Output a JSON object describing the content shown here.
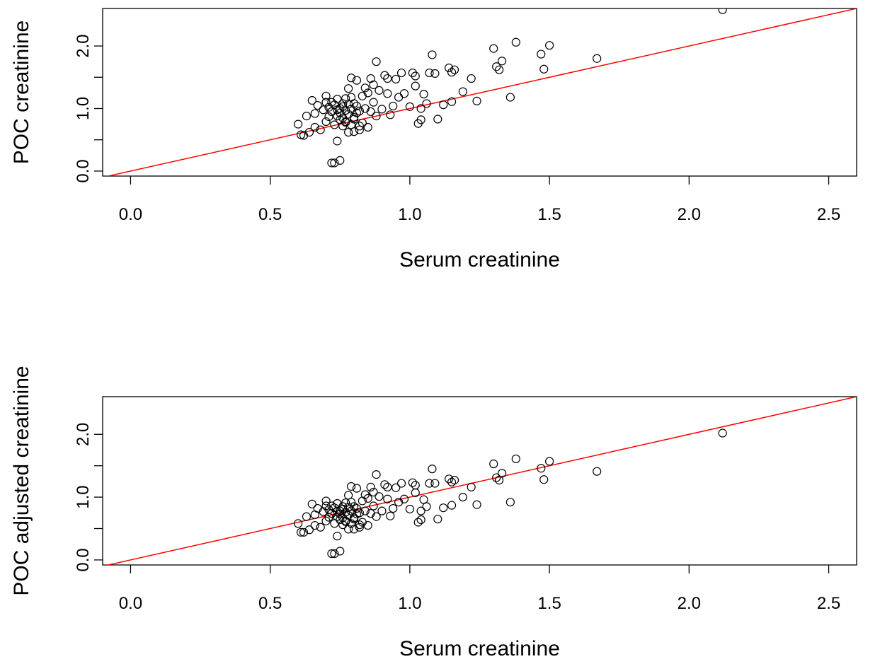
{
  "colors": {
    "points": "#000000",
    "identity_line": "#ff0000",
    "frame": "#000000",
    "background": "#ffffff"
  },
  "chart_data": [
    {
      "type": "scatter",
      "title": "",
      "xlabel": "Serum creatinine",
      "ylabel": "POC creatinine",
      "xlim": [
        -0.1,
        2.6
      ],
      "ylim": [
        -0.08,
        2.6
      ],
      "xticks": [
        "0.0",
        "0.5",
        "1.0",
        "1.5",
        "2.0",
        "2.5"
      ],
      "yticks": [
        "0.0",
        "1.0",
        "2.0"
      ],
      "yticks_minor": [
        0.5,
        1.5
      ],
      "grid": false,
      "reference_line": {
        "description": "identity",
        "slope": 1,
        "intercept": 0
      },
      "series": [
        {
          "x": [
            0.6,
            0.61,
            0.62,
            0.63,
            0.64,
            0.65,
            0.66,
            0.66,
            0.67,
            0.68,
            0.69,
            0.7,
            0.7,
            0.71,
            0.71,
            0.72,
            0.72,
            0.72,
            0.73,
            0.73,
            0.73,
            0.74,
            0.74,
            0.74,
            0.75,
            0.75,
            0.75,
            0.75,
            0.76,
            0.76,
            0.76,
            0.77,
            0.77,
            0.77,
            0.78,
            0.78,
            0.78,
            0.79,
            0.79,
            0.79,
            0.79,
            0.8,
            0.8,
            0.8,
            0.81,
            0.81,
            0.81,
            0.82,
            0.82,
            0.83,
            0.83,
            0.84,
            0.84,
            0.85,
            0.85,
            0.86,
            0.86,
            0.87,
            0.87,
            0.88,
            0.88,
            0.89,
            0.9,
            0.91,
            0.92,
            0.92,
            0.93,
            0.94,
            0.95,
            0.96,
            0.97,
            0.98,
            1.0,
            1.01,
            1.02,
            1.02,
            1.03,
            1.04,
            1.04,
            1.05,
            1.06,
            1.07,
            1.08,
            1.09,
            1.1,
            1.12,
            1.14,
            1.15,
            1.15,
            1.16,
            1.19,
            1.22,
            1.24,
            1.3,
            1.31,
            1.32,
            1.33,
            1.36,
            1.38,
            1.47,
            1.48,
            1.5,
            1.67,
            2.12,
            0.72,
            0.74,
            0.76,
            0.7,
            0.78,
            0.82,
            0.8,
            0.77
          ],
          "y": [
            0.75,
            0.58,
            0.57,
            0.88,
            0.62,
            1.13,
            0.7,
            0.92,
            1.05,
            0.66,
            0.98,
            1.2,
            0.79,
            1.02,
            0.87,
            0.13,
            1.1,
            0.95,
            0.74,
            0.13,
            1.06,
            0.48,
            0.88,
            1.15,
            0.17,
            1.0,
            0.82,
            0.93,
            1.08,
            0.85,
            0.72,
            1.16,
            0.97,
            0.79,
            1.07,
            0.91,
            1.32,
            0.74,
            1.49,
            0.99,
            1.18,
            0.63,
            1.08,
            0.86,
            1.04,
            0.93,
            1.45,
            0.72,
            0.96,
            1.2,
            0.77,
            1.0,
            1.33,
            0.7,
            1.25,
            0.95,
            1.48,
            1.1,
            1.38,
            0.88,
            1.75,
            1.29,
            0.99,
            1.53,
            1.24,
            1.48,
            0.9,
            1.04,
            1.47,
            1.18,
            1.57,
            1.24,
            1.03,
            1.57,
            1.52,
            1.36,
            0.76,
            1.0,
            0.82,
            1.23,
            1.08,
            1.57,
            1.86,
            1.56,
            0.83,
            1.06,
            1.65,
            1.58,
            1.11,
            1.62,
            1.27,
            1.48,
            1.12,
            1.96,
            1.67,
            1.62,
            1.76,
            1.18,
            2.06,
            1.87,
            1.63,
            2.01,
            1.8,
            2.58,
            0.95,
            0.98,
            1.03,
            1.1,
            0.62,
            0.66,
            0.83,
            0.78
          ]
        }
      ]
    },
    {
      "type": "scatter",
      "title": "",
      "xlabel": "Serum creatinine",
      "ylabel": "POC adjusted creatinine",
      "xlim": [
        -0.1,
        2.6
      ],
      "ylim": [
        -0.08,
        2.6
      ],
      "xticks": [
        "0.0",
        "0.5",
        "1.0",
        "1.5",
        "2.0",
        "2.5"
      ],
      "yticks": [
        "0.0",
        "1.0",
        "2.0"
      ],
      "yticks_minor": [
        0.5,
        1.5
      ],
      "grid": false,
      "reference_line": {
        "description": "identity",
        "slope": 1,
        "intercept": 0
      },
      "series": [
        {
          "x": [
            0.6,
            0.61,
            0.62,
            0.63,
            0.64,
            0.65,
            0.66,
            0.66,
            0.67,
            0.68,
            0.69,
            0.7,
            0.7,
            0.71,
            0.71,
            0.72,
            0.72,
            0.72,
            0.73,
            0.73,
            0.73,
            0.74,
            0.74,
            0.74,
            0.75,
            0.75,
            0.75,
            0.75,
            0.76,
            0.76,
            0.76,
            0.77,
            0.77,
            0.77,
            0.78,
            0.78,
            0.78,
            0.79,
            0.79,
            0.79,
            0.79,
            0.8,
            0.8,
            0.8,
            0.81,
            0.81,
            0.81,
            0.82,
            0.82,
            0.83,
            0.83,
            0.84,
            0.84,
            0.85,
            0.85,
            0.86,
            0.86,
            0.87,
            0.87,
            0.88,
            0.88,
            0.89,
            0.9,
            0.91,
            0.92,
            0.92,
            0.93,
            0.94,
            0.95,
            0.96,
            0.97,
            0.98,
            1.0,
            1.01,
            1.02,
            1.02,
            1.03,
            1.04,
            1.04,
            1.05,
            1.06,
            1.07,
            1.08,
            1.09,
            1.1,
            1.12,
            1.14,
            1.15,
            1.15,
            1.16,
            1.19,
            1.22,
            1.24,
            1.3,
            1.31,
            1.32,
            1.33,
            1.36,
            1.38,
            1.47,
            1.48,
            1.5,
            1.67,
            2.12,
            0.72,
            0.74,
            0.76,
            0.7,
            0.78,
            0.82,
            0.8,
            0.77
          ],
          "y": [
            0.58,
            0.44,
            0.44,
            0.69,
            0.48,
            0.89,
            0.55,
            0.72,
            0.82,
            0.52,
            0.77,
            0.94,
            0.62,
            0.8,
            0.68,
            0.1,
            0.86,
            0.74,
            0.58,
            0.1,
            0.83,
            0.38,
            0.69,
            0.9,
            0.14,
            0.78,
            0.64,
            0.73,
            0.85,
            0.67,
            0.56,
            0.91,
            0.76,
            0.62,
            0.84,
            0.71,
            1.03,
            0.58,
            1.17,
            0.78,
            0.92,
            0.49,
            0.85,
            0.67,
            0.82,
            0.73,
            1.14,
            0.56,
            0.75,
            0.94,
            0.6,
            0.78,
            1.04,
            0.55,
            0.98,
            0.74,
            1.16,
            0.86,
            1.08,
            0.69,
            1.36,
            1.01,
            0.78,
            1.2,
            0.97,
            1.16,
            0.7,
            0.82,
            1.15,
            0.92,
            1.22,
            0.97,
            0.81,
            1.23,
            1.19,
            1.07,
            0.6,
            0.78,
            0.64,
            0.96,
            0.85,
            1.22,
            1.45,
            1.22,
            0.65,
            0.83,
            1.29,
            1.24,
            0.87,
            1.27,
            1.0,
            1.16,
            0.88,
            1.53,
            1.31,
            1.27,
            1.38,
            0.92,
            1.61,
            1.46,
            1.28,
            1.57,
            1.41,
            2.02,
            0.74,
            0.77,
            0.81,
            0.86,
            0.49,
            0.52,
            0.65,
            0.61
          ]
        }
      ]
    }
  ]
}
